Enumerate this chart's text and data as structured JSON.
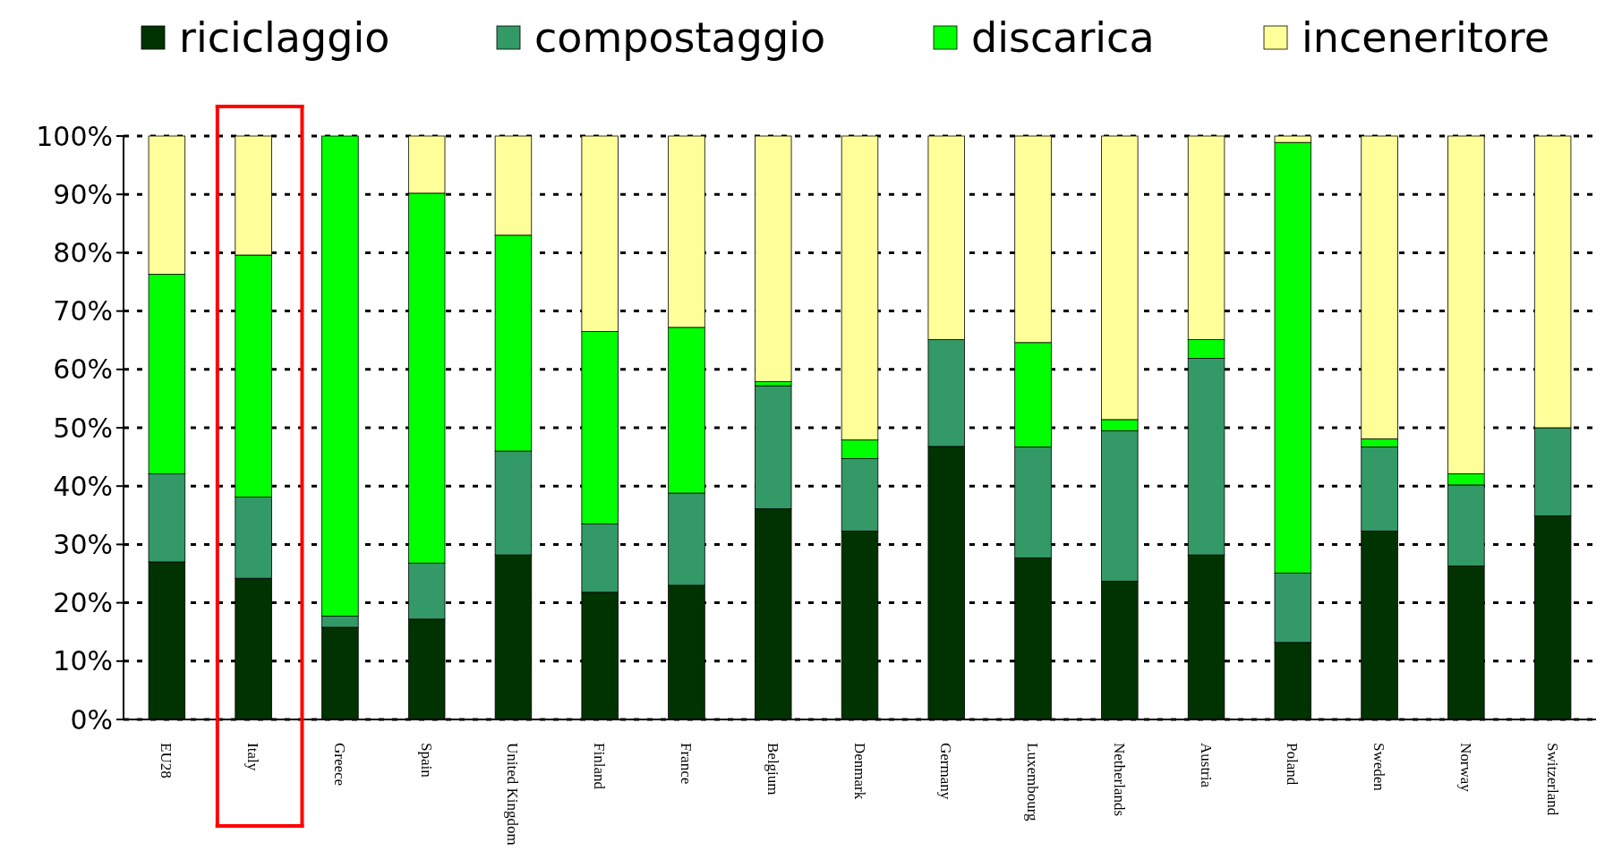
{
  "chart_data": {
    "type": "bar",
    "stacked": true,
    "categories": [
      "EU28",
      "Italy",
      "Greece",
      "Spain",
      "United Kingdom",
      "Finland",
      "France",
      "Belgium",
      "Denmark",
      "Germany",
      "Luxembourg",
      "Netherlands",
      "Austria",
      "Poland",
      "Sweden",
      "Norway",
      "Switzerland"
    ],
    "series": [
      {
        "name": "riciclaggio",
        "color": "#003300",
        "values": [
          27.0,
          24.2,
          15.8,
          17.2,
          28.2,
          21.8,
          23.0,
          36.1,
          32.3,
          46.8,
          27.7,
          23.7,
          28.2,
          13.2,
          32.3,
          26.3,
          34.9
        ]
      },
      {
        "name": "compostaggio",
        "color": "#339966",
        "values": [
          15.1,
          13.9,
          1.9,
          9.6,
          17.8,
          11.7,
          15.8,
          21.1,
          12.4,
          18.3,
          19.0,
          25.8,
          33.7,
          11.9,
          14.4,
          13.9,
          15.1
        ]
      },
      {
        "name": "discarica",
        "color": "#00ff00",
        "values": [
          34.2,
          41.5,
          82.3,
          63.4,
          37.0,
          33.0,
          28.4,
          0.7,
          3.2,
          0,
          17.9,
          1.9,
          3.2,
          73.8,
          1.4,
          1.9,
          0
        ]
      },
      {
        "name": "inceneritore",
        "color": "#ffff99",
        "values": [
          23.7,
          20.4,
          0,
          9.8,
          17.0,
          33.5,
          32.8,
          42.1,
          52.1,
          34.9,
          35.4,
          48.6,
          34.9,
          1.1,
          51.9,
          57.9,
          50.0
        ]
      }
    ],
    "ylim": [
      0,
      100
    ],
    "yticks": [
      {
        "value": 0,
        "label": "0%"
      },
      {
        "value": 10,
        "label": "10%"
      },
      {
        "value": 20,
        "label": "20%"
      },
      {
        "value": 30,
        "label": "30%"
      },
      {
        "value": 40,
        "label": "40%"
      },
      {
        "value": 50,
        "label": "50%"
      },
      {
        "value": 60,
        "label": "60%"
      },
      {
        "value": 70,
        "label": "70%"
      },
      {
        "value": 80,
        "label": "80%"
      },
      {
        "value": 90,
        "label": "90%"
      },
      {
        "value": 100,
        "label": "100%"
      }
    ],
    "grid": "y",
    "legend": "top"
  }
}
